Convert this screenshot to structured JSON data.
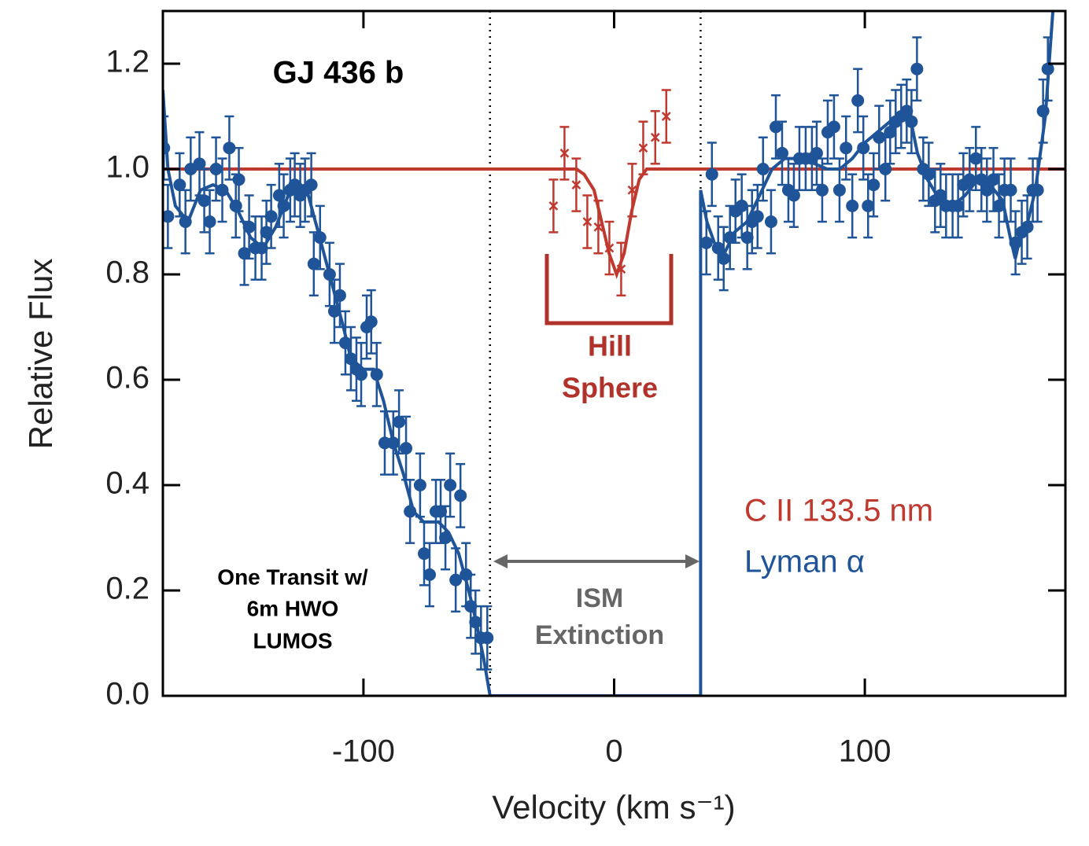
{
  "chart_data": {
    "type": "scatter",
    "title": "GJ 436 b",
    "x_label": "Velocity (km s⁻¹)",
    "y_label": "Relative Flux",
    "xlim": [
      -180,
      180
    ],
    "ylim": [
      0,
      1.3
    ],
    "xticks": [
      -100,
      0,
      100
    ],
    "yticks": [
      {
        "value": 0,
        "label": "0.0"
      },
      {
        "value": 0.2,
        "label": "0.2"
      },
      {
        "value": 0.4,
        "label": "0.4"
      },
      {
        "value": 0.6,
        "label": "0.6"
      },
      {
        "value": 0.8,
        "label": "0.8"
      },
      {
        "value": 1.0,
        "label": "1.0"
      },
      {
        "value": 1.2,
        "label": "1.2"
      }
    ],
    "vlines": [
      -49.5,
      34.5
    ],
    "annotations": {
      "transit": [
        "One Transit w/",
        "6m HWO",
        "LUMOS"
      ],
      "hill": [
        "Hill",
        "Sphere"
      ],
      "ism": [
        "ISM",
        "Extinction"
      ]
    },
    "series": [
      {
        "name": "C II 133.5 nm",
        "color": "#c0392f",
        "marker": "x",
        "error": 0.05,
        "x": [
          -24.2,
          -19.8,
          -15.1,
          -10.7,
          -6.3,
          -1.9,
          2.8,
          7.2,
          11.6,
          16.4,
          20.8
        ],
        "values": [
          0.93,
          1.03,
          0.97,
          0.9,
          0.89,
          0.85,
          0.81,
          0.96,
          1.04,
          1.06,
          1.1
        ],
        "model": {
          "x": [
            -180,
            -15,
            -12,
            -8,
            -5,
            -2,
            1,
            4,
            7,
            10,
            13,
            180
          ],
          "values": [
            1,
            1,
            0.99,
            0.96,
            0.9,
            0.84,
            0.8,
            0.84,
            0.92,
            0.98,
            1,
            1
          ]
        }
      },
      {
        "name": "Lyman α",
        "color": "#1f5499",
        "marker": "circle",
        "error": 0.06,
        "x": [
          -179.6,
          -178,
          -173.3,
          -171,
          -168.9,
          -165.4,
          -163.5,
          -161.3,
          -158.8,
          -156.3,
          -153.5,
          -150.9,
          -149.7,
          -147.5,
          -145.6,
          -143.1,
          -140.6,
          -138.7,
          -136.8,
          -133.6,
          -131.8,
          -129.2,
          -127.4,
          -125.2,
          -123.3,
          -120.8,
          -119.8,
          -117.3,
          -113.5,
          -111.6,
          -109.4,
          -107.2,
          -105,
          -102.8,
          -100.9,
          -98.7,
          -96.9,
          -94.7,
          -91.5,
          -88.1,
          -85.8,
          -83,
          -81.4,
          -77.4,
          -75.8,
          -73.6,
          -71.1,
          -69.2,
          -67.3,
          -65.4,
          -63.2,
          -61.3,
          -59.1,
          -57.2,
          -55.3,
          -53.1,
          -50.6,
          36.8,
          39,
          41.5,
          43.7,
          46.2,
          48.4,
          50.9,
          53.1,
          55,
          57.2,
          59.4,
          62.6,
          64.5,
          67,
          69.5,
          71.7,
          73.9,
          76.4,
          78.9,
          80.8,
          83,
          85.2,
          87.7,
          89.9,
          92.5,
          95,
          97.2,
          99.4,
          101.3,
          103.5,
          105.7,
          108.2,
          110.1,
          112.3,
          114.5,
          116.7,
          118.6,
          120.8,
          123.3,
          125.5,
          128,
          130.2,
          132.4,
          135,
          137.2,
          139.3,
          141.8,
          144.3,
          146.5,
          148.7,
          151.3,
          153.5,
          155.7,
          158.2,
          160.1,
          162.6,
          164.8,
          167,
          168.9,
          171.1,
          173
        ],
        "values": [
          1.04,
          0.91,
          0.97,
          0.9,
          1.0,
          1.01,
          0.94,
          0.9,
          1.0,
          0.96,
          1.04,
          0.93,
          0.98,
          0.84,
          0.89,
          0.85,
          0.85,
          0.88,
          0.91,
          0.95,
          0.93,
          0.96,
          0.97,
          0.95,
          0.96,
          0.97,
          0.82,
          0.87,
          0.8,
          0.73,
          0.76,
          0.67,
          0.64,
          0.62,
          0.61,
          0.7,
          0.71,
          0.61,
          0.48,
          0.48,
          0.52,
          0.47,
          0.35,
          0.4,
          0.27,
          0.23,
          0.35,
          0.35,
          0.3,
          0.4,
          0.22,
          0.38,
          0.23,
          0.17,
          0.14,
          0.11,
          0.11,
          0.86,
          0.99,
          0.85,
          0.83,
          0.87,
          0.92,
          0.93,
          0.87,
          0.9,
          0.91,
          1.0,
          0.9,
          1.08,
          1.03,
          0.96,
          0.95,
          1.02,
          1.02,
          1.02,
          1.03,
          0.96,
          1.07,
          1.08,
          0.96,
          1.04,
          0.93,
          1.13,
          1.04,
          0.93,
          0.97,
          1.06,
          1.0,
          1.07,
          1.09,
          1.1,
          1.11,
          1.09,
          1.19,
          1.0,
          0.99,
          0.94,
          0.95,
          0.93,
          0.93,
          0.93,
          0.97,
          0.98,
          1.02,
          0.98,
          0.96,
          0.98,
          0.93,
          0.96,
          0.96,
          0.86,
          0.88,
          0.89,
          0.96,
          0.96,
          1.11,
          1.19
        ],
        "model": {
          "x": [
            -180,
            -178,
            -175,
            -170,
            -165,
            -160,
            -155,
            -150,
            -145,
            -140,
            -135,
            -130,
            -125,
            -122,
            -118,
            -113,
            -108,
            -105,
            -100,
            -96,
            -92,
            -88,
            -84,
            -80,
            -76,
            -70,
            -66,
            -62,
            -58,
            -55,
            -52,
            -49.5,
            34.5,
            34.5,
            37,
            40,
            44,
            48,
            53,
            58,
            63,
            68,
            75,
            80,
            85,
            90,
            95,
            100,
            105,
            110,
            115,
            118,
            121,
            125,
            130,
            135,
            140,
            145,
            150,
            155,
            158,
            160,
            162,
            165,
            168,
            172,
            175
          ],
          "values": [
            1.15,
            1.0,
            0.93,
            0.9,
            0.96,
            0.97,
            0.96,
            0.92,
            0.87,
            0.85,
            0.89,
            0.95,
            0.97,
            0.95,
            0.88,
            0.79,
            0.7,
            0.64,
            0.62,
            0.62,
            0.56,
            0.48,
            0.42,
            0.35,
            0.33,
            0.33,
            0.31,
            0.27,
            0.2,
            0.14,
            0.07,
            0,
            0,
            0.96,
            0.9,
            0.86,
            0.84,
            0.88,
            0.9,
            0.95,
            1.0,
            1.02,
            1.02,
            1.01,
            1.0,
            1.0,
            1.02,
            1.05,
            1.07,
            1.09,
            1.11,
            1.1,
            1.03,
            0.98,
            0.94,
            0.93,
            0.95,
            0.98,
            0.97,
            0.94,
            0.87,
            0.83,
            0.87,
            0.9,
            0.96,
            1.1,
            1.3
          ]
        }
      }
    ]
  }
}
